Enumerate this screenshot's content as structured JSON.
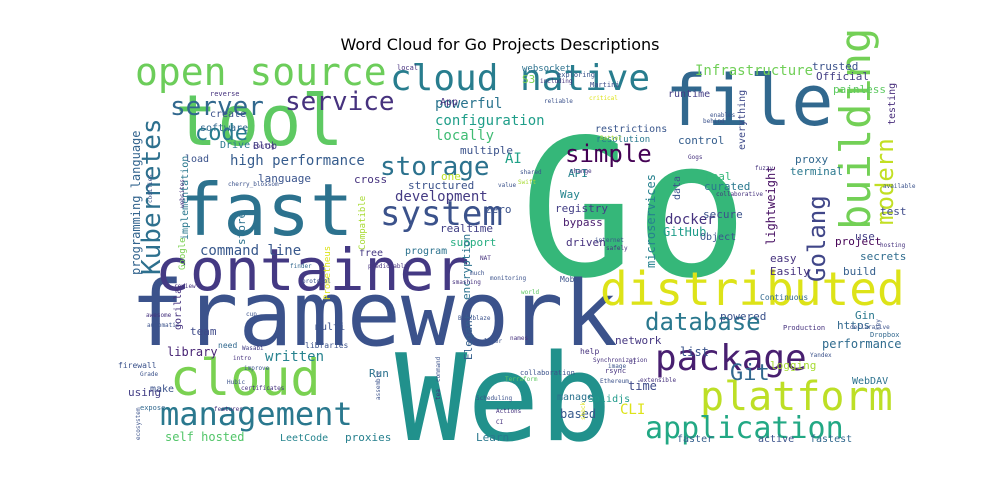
{
  "chart_data": {
    "type": "word_cloud",
    "title": "Word Cloud for Go Projects Descriptions",
    "background": "#ffffff",
    "colormap": "viridis",
    "words": [
      {
        "text": "Go",
        "weight": 100,
        "color": "#35b779"
      },
      {
        "text": "Web",
        "weight": 72,
        "color": "#21918c"
      },
      {
        "text": "framework",
        "weight": 58,
        "color": "#3b528b"
      },
      {
        "text": "container",
        "weight": 52,
        "color": "#443983"
      },
      {
        "text": "tool",
        "weight": 55,
        "color": "#5ec962"
      },
      {
        "text": "fast",
        "weight": 50,
        "color": "#2c728e"
      },
      {
        "text": "file",
        "weight": 48,
        "color": "#31688e"
      },
      {
        "text": "distributed",
        "weight": 40,
        "color": "#dde318"
      },
      {
        "text": "cloud",
        "weight": 36,
        "color": "#7ad151"
      },
      {
        "text": "open source",
        "weight": 34,
        "color": "#6ccd5a"
      },
      {
        "text": "cloud native",
        "weight": 30,
        "color": "#287d8e"
      },
      {
        "text": "system",
        "weight": 30,
        "color": "#3b528b"
      },
      {
        "text": "platform",
        "weight": 30,
        "color": "#bddf26"
      },
      {
        "text": "management",
        "weight": 28,
        "color": "#2a788e"
      },
      {
        "text": "package",
        "weight": 28,
        "color": "#481f70"
      },
      {
        "text": "building",
        "weight": 28,
        "color": "#73d056"
      },
      {
        "text": "application",
        "weight": 24,
        "color": "#22a884"
      },
      {
        "text": "Kubernetes",
        "weight": 22,
        "color": "#2d708e"
      },
      {
        "text": "server",
        "weight": 20,
        "color": "#31688e"
      },
      {
        "text": "service",
        "weight": 20,
        "color": "#46327e"
      },
      {
        "text": "storage",
        "weight": 20,
        "color": "#2c728e"
      },
      {
        "text": "database",
        "weight": 20,
        "color": "#2a788e"
      },
      {
        "text": "simple",
        "weight": 20,
        "color": "#440154"
      },
      {
        "text": "Golang",
        "weight": 18,
        "color": "#404688"
      },
      {
        "text": "modern",
        "weight": 18,
        "color": "#c2df23"
      },
      {
        "text": "Git",
        "weight": 18,
        "color": "#31688e"
      },
      {
        "text": "code",
        "weight": 18,
        "color": "#287c8e"
      },
      {
        "text": "Infrastructure",
        "weight": 12,
        "color": "#70cf57"
      },
      {
        "text": "high performance",
        "weight": 11,
        "color": "#365c8d"
      },
      {
        "text": "command line",
        "weight": 11,
        "color": "#38588c"
      },
      {
        "text": "programming language",
        "weight": 10,
        "color": "#32648e"
      },
      {
        "text": "configuration",
        "weight": 10,
        "color": "#1f9e89"
      },
      {
        "text": "development",
        "weight": 10,
        "color": "#443a83"
      },
      {
        "text": "powerful",
        "weight": 10,
        "color": "#2b748e"
      },
      {
        "text": "locally",
        "weight": 10,
        "color": "#3fbc73"
      },
      {
        "text": "written",
        "weight": 10,
        "color": "#26828e"
      },
      {
        "text": "library",
        "weight": 9,
        "color": "#482475"
      },
      {
        "text": "self hosted",
        "weight": 9,
        "color": "#52c569"
      },
      {
        "text": "LeetCode",
        "weight": 8,
        "color": "#25848e"
      },
      {
        "text": "proxies",
        "weight": 8,
        "color": "#27808e"
      },
      {
        "text": "Learn",
        "weight": 8,
        "color": "#2a788e"
      },
      {
        "text": "based",
        "weight": 8,
        "color": "#375a8c"
      },
      {
        "text": "CLI",
        "weight": 9,
        "color": "#dde318"
      },
      {
        "text": "time",
        "weight": 9,
        "color": "#3e4a89"
      },
      {
        "text": "Solidjs",
        "weight": 8,
        "color": "#1f9a8a"
      },
      {
        "text": "WebDAV",
        "weight": 8,
        "color": "#2c728e"
      },
      {
        "text": "performance",
        "weight": 8,
        "color": "#2f6b8e"
      },
      {
        "text": "logging",
        "weight": 8,
        "color": "#a8db34"
      },
      {
        "text": "list",
        "weight": 8,
        "color": "#3a548c"
      },
      {
        "text": "network",
        "weight": 8,
        "color": "#453781"
      },
      {
        "text": "faster",
        "weight": 8,
        "color": "#355f8d"
      },
      {
        "text": "active",
        "weight": 8,
        "color": "#3b528b"
      },
      {
        "text": "fastest",
        "weight": 8,
        "color": "#31688e"
      },
      {
        "text": "AI",
        "weight": 9,
        "color": "#1fa187"
      },
      {
        "text": "docker",
        "weight": 9,
        "color": "#46337f"
      },
      {
        "text": "GitHub",
        "weight": 8,
        "color": "#1e9c89"
      },
      {
        "text": "microservices",
        "weight": 9,
        "color": "#26818e"
      },
      {
        "text": "registry",
        "weight": 8,
        "color": "#433e85"
      },
      {
        "text": "bypass",
        "weight": 8,
        "color": "#481b6d"
      },
      {
        "text": "API",
        "weight": 8,
        "color": "#26828e"
      },
      {
        "text": "Way",
        "weight": 8,
        "color": "#25858e"
      },
      {
        "text": "zero",
        "weight": 8,
        "color": "#3b528b"
      },
      {
        "text": "one",
        "weight": 8,
        "color": "#bddf26"
      },
      {
        "text": "realtime",
        "weight": 8,
        "color": "#424086"
      },
      {
        "text": "support",
        "weight": 8,
        "color": "#26ad81"
      },
      {
        "text": "program",
        "weight": 7,
        "color": "#2c728e"
      },
      {
        "text": "free",
        "weight": 7,
        "color": "#453882"
      },
      {
        "text": "multiple",
        "weight": 8,
        "color": "#3b528b"
      },
      {
        "text": "resolution",
        "weight": 7,
        "color": "#2a788e"
      },
      {
        "text": "restrictions",
        "weight": 8,
        "color": "#39568c"
      },
      {
        "text": "control",
        "weight": 8,
        "color": "#355e8d"
      },
      {
        "text": "runtime",
        "weight": 8,
        "color": "#433e85"
      },
      {
        "text": "websocket",
        "weight": 7,
        "color": "#2c718e"
      },
      {
        "text": "S3",
        "weight": 7,
        "color": "#7ad151"
      },
      {
        "text": "local",
        "weight": 6,
        "color": "#46317e"
      },
      {
        "text": "App",
        "weight": 7,
        "color": "#46317e"
      },
      {
        "text": "Martini",
        "weight": 6,
        "color": "#3d4e8a"
      },
      {
        "text": "exploring",
        "weight": 6,
        "color": "#3a548c"
      },
      {
        "text": "trusted",
        "weight": 8,
        "color": "#3b528b"
      },
      {
        "text": "Official",
        "weight": 8,
        "color": "#433e85"
      },
      {
        "text": "painless",
        "weight": 8,
        "color": "#5ec962"
      },
      {
        "text": "testing",
        "weight": 7,
        "color": "#472d7b"
      },
      {
        "text": "everything",
        "weight": 7,
        "color": "#3e4989"
      },
      {
        "text": "proxy",
        "weight": 8,
        "color": "#31688e"
      },
      {
        "text": "terminal",
        "weight": 8,
        "color": "#2a788e"
      },
      {
        "text": "lightweight",
        "weight": 8,
        "color": "#471063"
      },
      {
        "text": "real",
        "weight": 8,
        "color": "#35b779"
      },
      {
        "text": "curated",
        "weight": 8,
        "color": "#2a788e"
      },
      {
        "text": "secure",
        "weight": 8,
        "color": "#3b528b"
      },
      {
        "text": "Object",
        "weight": 7,
        "color": "#3a548c"
      },
      {
        "text": "easy",
        "weight": 8,
        "color": "#46327e"
      },
      {
        "text": "Easily",
        "weight": 8,
        "color": "#46327e"
      },
      {
        "text": "test",
        "weight": 8,
        "color": "#3e4a89"
      },
      {
        "text": "secrets",
        "weight": 8,
        "color": "#2f6c8e"
      },
      {
        "text": "project",
        "weight": 8,
        "color": "#440154"
      },
      {
        "text": "build",
        "weight": 8,
        "color": "#355f8d"
      },
      {
        "text": "use",
        "weight": 8,
        "color": "#433e85"
      },
      {
        "text": "https",
        "weight": 8,
        "color": "#31688e"
      },
      {
        "text": "Gin",
        "weight": 8,
        "color": "#2a788e"
      },
      {
        "text": "powered",
        "weight": 8,
        "color": "#3b528b"
      },
      {
        "text": "Run",
        "weight": 8,
        "color": "#2c728e"
      },
      {
        "text": "team",
        "weight": 7,
        "color": "#3e4989"
      },
      {
        "text": "make",
        "weight": 7,
        "color": "#3b528b"
      },
      {
        "text": "using",
        "weight": 7,
        "color": "#433e85"
      },
      {
        "text": "language",
        "weight": 8,
        "color": "#3a548c"
      },
      {
        "text": "cross",
        "weight": 8,
        "color": "#46327e"
      },
      {
        "text": "store",
        "weight": 8,
        "color": "#2c728e"
      },
      {
        "text": "load",
        "weight": 7,
        "color": "#3b528b"
      },
      {
        "text": "Drive",
        "weight": 7,
        "color": "#2a788e"
      },
      {
        "text": "software",
        "weight": 7,
        "color": "#31688e"
      },
      {
        "text": "create",
        "weight": 7,
        "color": "#3b528b"
      },
      {
        "text": "reverse",
        "weight": 5,
        "color": "#46327e"
      },
      {
        "text": "Blob",
        "weight": 6,
        "color": "#433e85"
      },
      {
        "text": "implementation",
        "weight": 7,
        "color": "#2a788e"
      },
      {
        "text": "Google",
        "weight": 6,
        "color": "#7ad151"
      },
      {
        "text": "Prometheus",
        "weight": 6,
        "color": "#dde318"
      },
      {
        "text": "Compatible",
        "weight": 6,
        "color": "#a8db34"
      },
      {
        "text": "structured",
        "weight": 8,
        "color": "#3b528b"
      },
      {
        "text": "driven",
        "weight": 8,
        "color": "#46327e"
      },
      {
        "text": "encryption",
        "weight": 8,
        "color": "#2c728e"
      },
      {
        "text": "Elegant",
        "weight": 8,
        "color": "#355f8d"
      },
      {
        "text": "data",
        "weight": 7,
        "color": "#3b528b"
      },
      {
        "text": "gorilla",
        "weight": 7,
        "color": "#46327e"
      },
      {
        "text": "multi",
        "weight": 7,
        "color": "#3b528b"
      },
      {
        "text": "firewall",
        "weight": 6,
        "color": "#3b528b"
      },
      {
        "text": "expose",
        "weight": 6,
        "color": "#31688e"
      },
      {
        "text": "ecosystem",
        "weight": 5,
        "color": "#3b528b"
      },
      {
        "text": "manage",
        "weight": 7,
        "color": "#2c728e"
      },
      {
        "text": "Moby",
        "weight": 6,
        "color": "#3b528b"
      },
      {
        "text": "Continuous",
        "weight": 6,
        "color": "#31688e"
      },
      {
        "text": "help",
        "weight": 6,
        "color": "#46327e"
      },
      {
        "text": "libraries",
        "weight": 6,
        "color": "#3b528b"
      },
      {
        "text": "need",
        "weight": 6,
        "color": "#31688e"
      },
      {
        "text": "Wasabi",
        "weight": 5,
        "color": "#433e85"
      },
      {
        "text": "Production",
        "weight": 5,
        "color": "#46327e"
      },
      {
        "text": "declarative",
        "weight": 5,
        "color": "#3b528b"
      },
      {
        "text": "Dropbox",
        "weight": 5,
        "color": "#31688e"
      },
      {
        "text": "key",
        "weight": 5,
        "color": "#3b528b"
      },
      {
        "text": "hosting",
        "weight": 5,
        "color": "#46327e"
      },
      {
        "text": "available",
        "weight": 5,
        "color": "#3b528b"
      },
      {
        "text": "Gogs",
        "weight": 5,
        "color": "#46327e"
      },
      {
        "text": "behind",
        "weight": 5,
        "color": "#3b528b"
      },
      {
        "text": "fuzzy",
        "weight": 5,
        "color": "#46327e"
      },
      {
        "text": "Yandex",
        "weight": 4,
        "color": "#3b528b"
      },
      {
        "text": "rsync",
        "weight": 5,
        "color": "#46327e"
      },
      {
        "text": "Ethereum",
        "weight": 5,
        "color": "#3b528b"
      },
      {
        "text": "Terraform",
        "weight": 5,
        "color": "#5ec962"
      },
      {
        "text": "extensible",
        "weight": 5,
        "color": "#46327e"
      },
      {
        "text": "image",
        "weight": 4,
        "color": "#3b528b"
      },
      {
        "text": "Actions",
        "weight": 5,
        "color": "#46327e"
      },
      {
        "text": "layer",
        "weight": 5,
        "color": "#3b528b"
      },
      {
        "text": "names",
        "weight": 5,
        "color": "#46327e"
      },
      {
        "text": "Backblaze",
        "weight": 4,
        "color": "#3b528b"
      },
      {
        "text": "finder",
        "weight": 5,
        "color": "#31688e"
      },
      {
        "text": "collaboration",
        "weight": 4,
        "color": "#3b528b"
      },
      {
        "text": "Synchronization",
        "weight": 4,
        "color": "#46327e"
      },
      {
        "text": "monitoring",
        "weight": 4,
        "color": "#3b528b"
      },
      {
        "text": "NAT",
        "weight": 5,
        "color": "#46327e"
      },
      {
        "text": "internet",
        "weight": 4,
        "color": "#3b528b"
      },
      {
        "text": "change",
        "weight": 4,
        "color": "#46327e"
      },
      {
        "text": "Swift",
        "weight": 4,
        "color": "#a8db34"
      },
      {
        "text": "value",
        "weight": 4,
        "color": "#3b528b"
      },
      {
        "text": "including",
        "weight": 4,
        "color": "#46327e"
      },
      {
        "text": "reliable",
        "weight": 4,
        "color": "#3b528b"
      },
      {
        "text": "critical",
        "weight": 4,
        "color": "#dde318"
      },
      {
        "text": "Better",
        "weight": 4,
        "color": "#a8db34"
      },
      {
        "text": "enables",
        "weight": 4,
        "color": "#3b528b"
      },
      {
        "text": "collaborative",
        "weight": 4,
        "color": "#46327e"
      },
      {
        "text": "shared",
        "weight": 4,
        "color": "#3b528b"
      },
      {
        "text": "safely",
        "weight": 4,
        "color": "#46327e"
      },
      {
        "text": "protocol",
        "weight": 4,
        "color": "#3b528b"
      },
      {
        "text": "predictably",
        "weight": 4,
        "color": "#46327e"
      },
      {
        "text": "cherry_blossom",
        "weight": 4,
        "color": "#3b528b"
      },
      {
        "text": "websites",
        "weight": 4,
        "color": "#46327e"
      },
      {
        "text": "codifies",
        "weight": 4,
        "color": "#3b528b"
      },
      {
        "text": "config",
        "weight": 4,
        "color": "#46327e"
      },
      {
        "text": "cup",
        "weight": 4,
        "color": "#3b528b"
      },
      {
        "text": "intro",
        "weight": 4,
        "color": "#46327e"
      },
      {
        "text": "improve",
        "weight": 4,
        "color": "#3b528b"
      },
      {
        "text": "review",
        "weight": 4,
        "color": "#46327e"
      },
      {
        "text": "automatic",
        "weight": 4,
        "color": "#3b528b"
      },
      {
        "text": "awesome",
        "weight": 4,
        "color": "#46327e"
      },
      {
        "text": "Hubic",
        "weight": 4,
        "color": "#3b528b"
      },
      {
        "text": "certificates",
        "weight": 4,
        "color": "#46327e"
      },
      {
        "text": "Grade",
        "weight": 4,
        "color": "#3b528b"
      },
      {
        "text": "features",
        "weight": 4,
        "color": "#46327e"
      },
      {
        "text": "assemble",
        "weight": 5,
        "color": "#3b528b"
      },
      {
        "text": "tea",
        "weight": 4,
        "color": "#46327e"
      },
      {
        "text": "much",
        "weight": 4,
        "color": "#3b528b"
      },
      {
        "text": "smashing",
        "weight": 4,
        "color": "#46327e"
      },
      {
        "text": "world",
        "weight": 4,
        "color": "#5ec962"
      },
      {
        "text": "shock",
        "weight": 4,
        "color": "#dde318"
      },
      {
        "text": "Scheduling",
        "weight": 4,
        "color": "#3b528b"
      },
      {
        "text": "CI",
        "weight": 4,
        "color": "#46327e"
      },
      {
        "text": "command",
        "weight": 4,
        "color": "#3b528b"
      },
      {
        "text": "UI",
        "weight": 4,
        "color": "#46327e"
      }
    ]
  }
}
